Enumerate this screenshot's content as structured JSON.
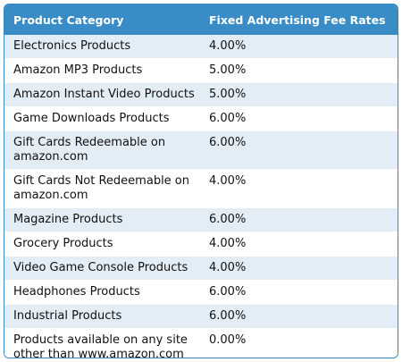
{
  "table": {
    "headers": [
      "Product Category",
      "Fixed Advertising Fee Rates"
    ],
    "rows": [
      {
        "category": "Electronics Products",
        "rate": "4.00%"
      },
      {
        "category": "Amazon MP3 Products",
        "rate": "5.00%"
      },
      {
        "category": "Amazon Instant Video Products",
        "rate": "5.00%"
      },
      {
        "category": "Game Downloads Products",
        "rate": "6.00%"
      },
      {
        "category": "Gift Cards Redeemable on amazon.com",
        "rate": "6.00%"
      },
      {
        "category": "Gift Cards Not Redeemable on amazon.com",
        "rate": "4.00%"
      },
      {
        "category": "Magazine Products",
        "rate": "6.00%"
      },
      {
        "category": "Grocery Products",
        "rate": "4.00%"
      },
      {
        "category": "Video Game Console Products",
        "rate": "4.00%"
      },
      {
        "category": "Headphones Products",
        "rate": "6.00%"
      },
      {
        "category": "Industrial Products",
        "rate": "6.00%"
      },
      {
        "category": "Products available on any site other than www.amazon.com",
        "rate": "0.00%"
      }
    ]
  },
  "colors": {
    "header_bg": "#3a8cc6",
    "header_text": "#ffffff",
    "stripe_bg": "#e3edf5",
    "border": "#3588c4"
  }
}
